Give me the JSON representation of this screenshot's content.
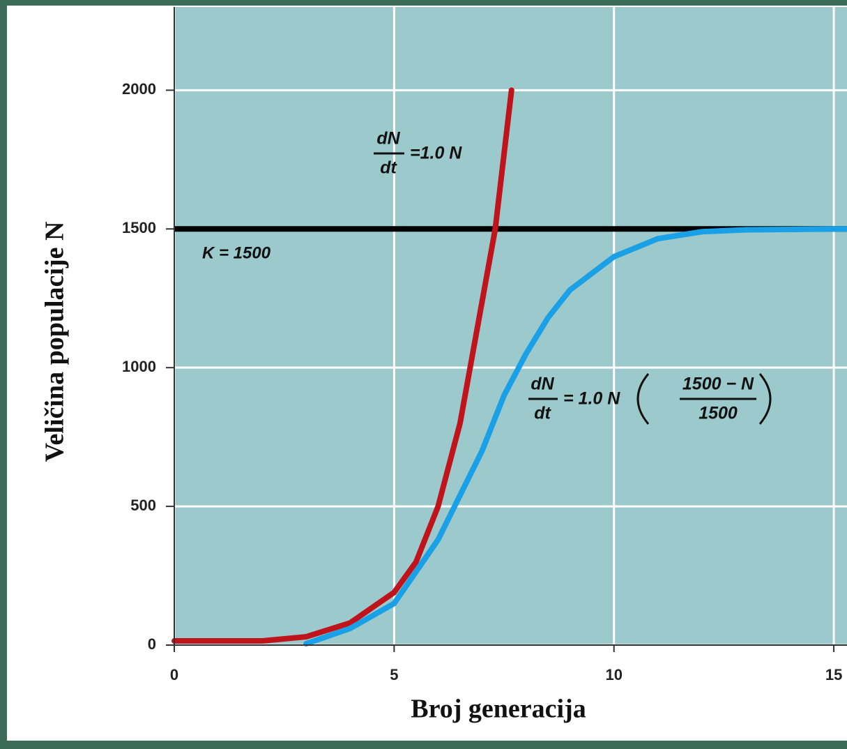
{
  "chart_data": {
    "type": "line",
    "xlabel": "Broj generacija",
    "ylabel": "Veličina populacije N",
    "xlim": [
      0,
      15.3
    ],
    "ylim": [
      0,
      2300
    ],
    "xticks": [
      0,
      5,
      10,
      15
    ],
    "yticks": [
      0,
      500,
      1000,
      1500,
      2000
    ],
    "grid": true,
    "series": [
      {
        "color": "#c0141c",
        "x": [
          0,
          2,
          3,
          4,
          5,
          5.5,
          6,
          6.5,
          6.9,
          7.3,
          7.67
        ],
        "values": [
          15,
          15,
          30,
          80,
          190,
          300,
          500,
          800,
          1150,
          1500,
          2000
        ]
      },
      {
        "color": "#1aa0e6",
        "x": [
          3,
          4,
          5,
          6,
          7,
          7.5,
          8,
          8.5,
          9,
          10,
          11,
          12,
          13,
          15.3
        ],
        "values": [
          5,
          60,
          150,
          380,
          700,
          900,
          1050,
          1180,
          1280,
          1400,
          1465,
          1490,
          1497,
          1500
        ]
      }
    ],
    "k_line": {
      "value": 1500,
      "label": "K = 1500",
      "color": "#000000"
    },
    "annotations": {
      "exponential": {
        "numerator": "dN",
        "denominator": "dt",
        "rest": "=1.0 N"
      },
      "logistic": {
        "numerator": "dN",
        "denominator": "dt",
        "rest": "= 1.0 N",
        "inner_numerator": "1500 − N",
        "inner_denominator": "1500"
      }
    }
  }
}
